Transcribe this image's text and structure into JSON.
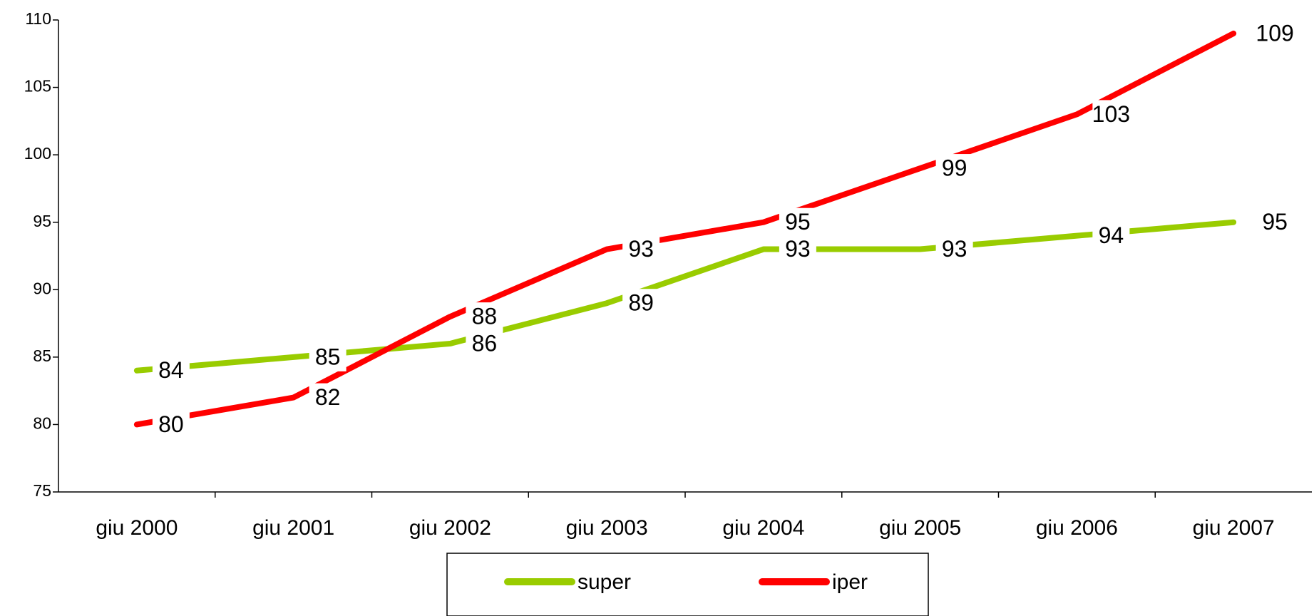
{
  "chart_data": {
    "type": "line",
    "categories": [
      "giu 2000",
      "giu 2001",
      "giu 2002",
      "giu 2003",
      "giu 2004",
      "giu 2005",
      "giu 2006",
      "giu 2007"
    ],
    "series": [
      {
        "name": "super",
        "color": "#99cc00",
        "values": [
          84,
          85,
          86,
          89,
          93,
          93,
          94,
          95
        ]
      },
      {
        "name": "iper",
        "color": "#ff0000",
        "values": [
          80,
          82,
          88,
          93,
          95,
          99,
          103,
          109
        ]
      }
    ],
    "ylim": [
      75,
      110
    ],
    "yticks": [
      75,
      80,
      85,
      90,
      95,
      100,
      105,
      110
    ],
    "grid": false,
    "legend": "bottom"
  }
}
